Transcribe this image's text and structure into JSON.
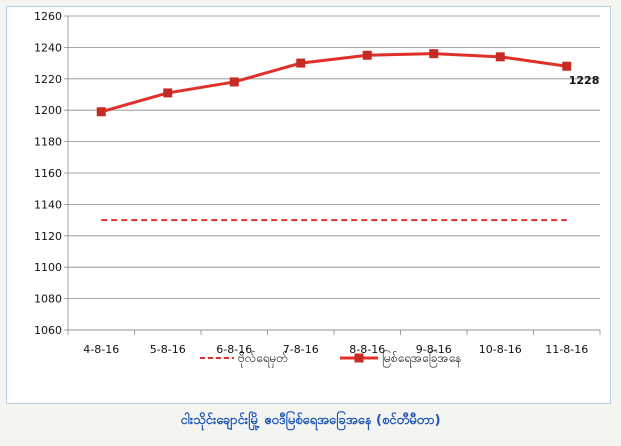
{
  "chart_data": {
    "type": "line",
    "categories": [
      "4-8-16",
      "5-8-16",
      "6-8-16",
      "7-8-16",
      "8-8-16",
      "9-8-16",
      "10-8-16",
      "11-8-16"
    ],
    "ylim": [
      1060,
      1260
    ],
    "yticks": [
      1060,
      1080,
      1100,
      1120,
      1140,
      1160,
      1180,
      1200,
      1220,
      1240,
      1260
    ],
    "grid": true,
    "legend_position": "bottom",
    "series": [
      {
        "name": "ဗိုလ်ရေမှတ်",
        "style": "dashed",
        "color": "#e0302a",
        "values": [
          1130,
          1130,
          1130,
          1130,
          1130,
          1130,
          1130,
          1130
        ]
      },
      {
        "name": "မြစ်ရေအခြေအနေ",
        "style": "solid-square-markers",
        "color": "#e0302a",
        "values": [
          1199,
          1211,
          1218,
          1230,
          1235,
          1236,
          1234,
          1228
        ]
      }
    ],
    "data_labels": [
      {
        "index": 7,
        "text": "1228"
      }
    ]
  },
  "caption": "ငါးသိုင်းချောင်းမြို့ ဧ၀ဒီမြစ်ရေအခြေအနေ (စင်တီမီတာ)"
}
